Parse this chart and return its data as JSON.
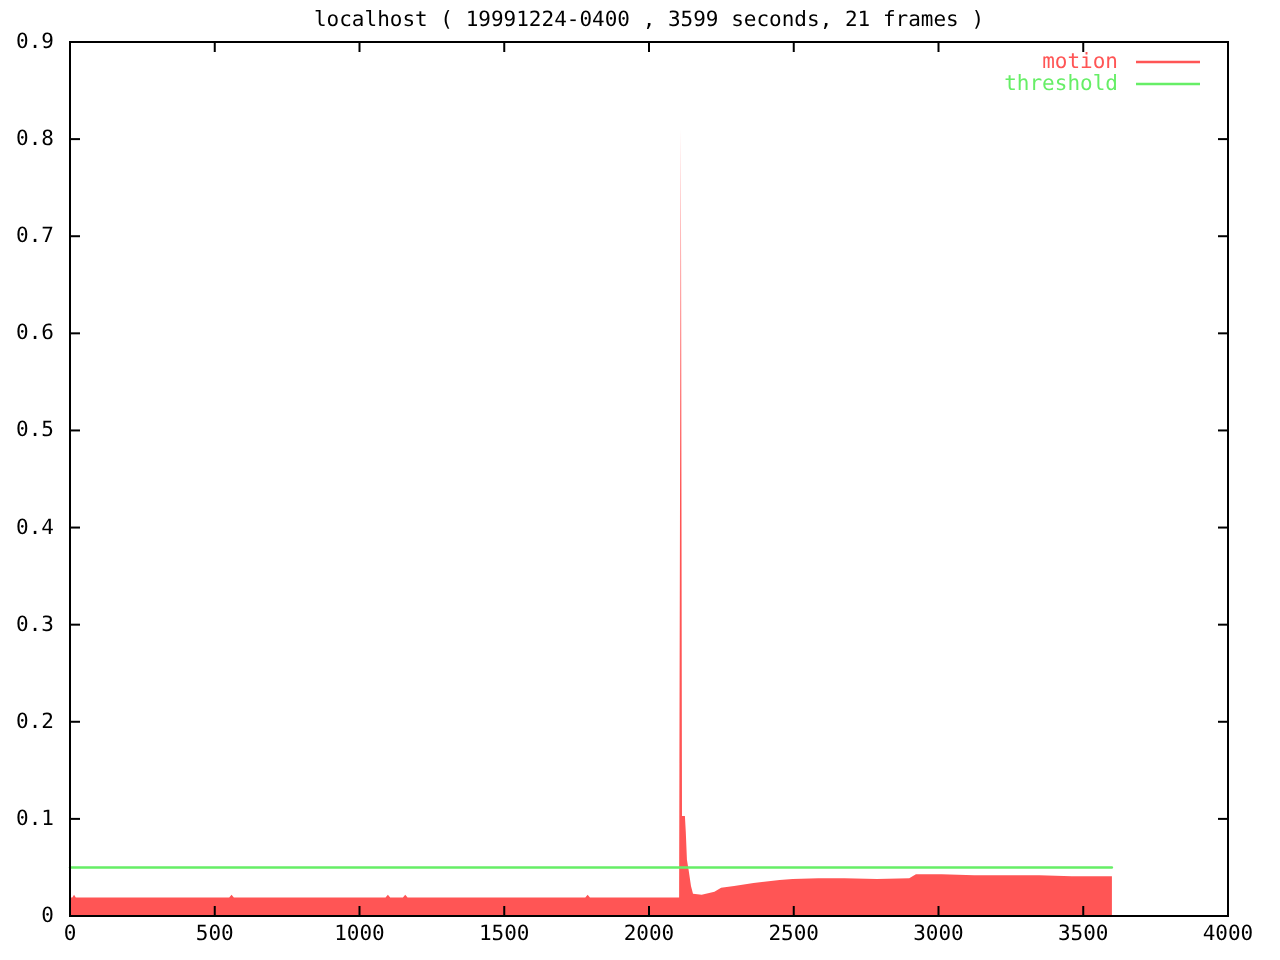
{
  "chart_data": {
    "type": "area",
    "title": "localhost ( 19991224-0400 , 3599 seconds, 21 frames )",
    "xlim": [
      0,
      4000
    ],
    "ylim": [
      0,
      0.9
    ],
    "xticks": [
      0,
      500,
      1000,
      1500,
      2000,
      2500,
      3000,
      3500,
      4000
    ],
    "yticks": [
      0,
      0.1,
      0.2,
      0.3,
      0.4,
      0.5,
      0.6,
      0.7,
      0.8,
      0.9
    ],
    "legend": "top right",
    "series": [
      {
        "name": "motion",
        "color": "#ff5555",
        "x": [
          0,
          8,
          14,
          20,
          550,
          558,
          566,
          1090,
          1098,
          1106,
          1150,
          1158,
          1166,
          1780,
          1788,
          1796,
          2104,
          2110,
          2114,
          2124,
          2127,
          2131,
          2137,
          2145,
          2152,
          2182,
          2226,
          2249,
          2294,
          2361,
          2451,
          2496,
          2585,
          2675,
          2787,
          2899,
          2922,
          3011,
          3123,
          3235,
          3348,
          3460,
          3572,
          3599
        ],
        "values": [
          0.019,
          0.019,
          0.022,
          0.019,
          0.019,
          0.022,
          0.019,
          0.019,
          0.022,
          0.019,
          0.019,
          0.022,
          0.019,
          0.019,
          0.022,
          0.019,
          0.019,
          0.81,
          0.103,
          0.103,
          0.087,
          0.058,
          0.047,
          0.031,
          0.023,
          0.022,
          0.025,
          0.029,
          0.031,
          0.034,
          0.037,
          0.038,
          0.039,
          0.039,
          0.038,
          0.039,
          0.043,
          0.043,
          0.042,
          0.042,
          0.042,
          0.041,
          0.041,
          0.041
        ]
      },
      {
        "name": "threshold",
        "type": "line",
        "color": "#66ee66",
        "x": [
          0,
          3599
        ],
        "values": [
          0.05,
          0.05
        ]
      }
    ]
  }
}
